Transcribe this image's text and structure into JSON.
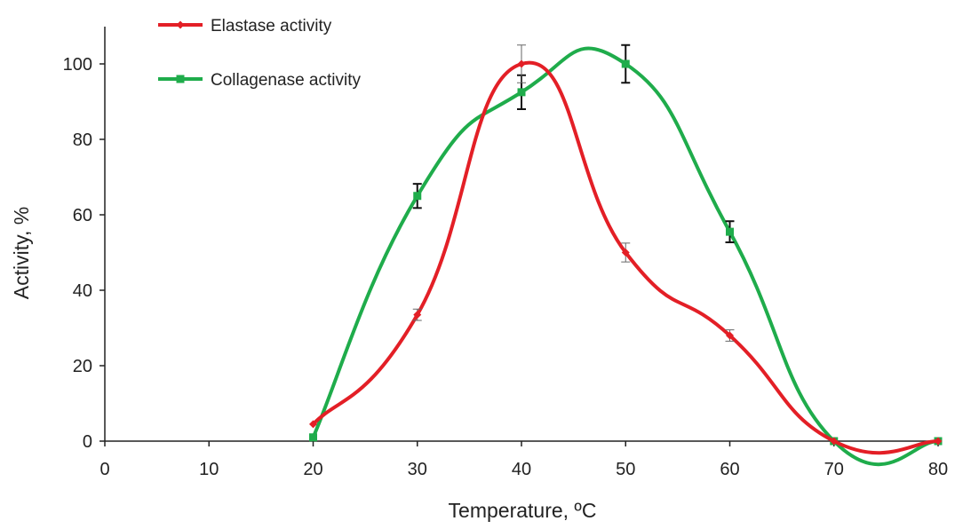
{
  "chart_data": {
    "type": "line",
    "xlabel": "Temperature, ºC",
    "ylabel": "Activity, %",
    "xlim": [
      0,
      80
    ],
    "ylim": [
      0,
      110
    ],
    "x_ticks": [
      "0",
      "10",
      "20",
      "30",
      "40",
      "50",
      "60",
      "70",
      "80"
    ],
    "y_ticks": [
      "0",
      "20",
      "40",
      "60",
      "80",
      "100"
    ],
    "grid": false,
    "legend_position": "top-left",
    "smoothed": true,
    "series": [
      {
        "name": "Elastase activity",
        "color": "#e31f26",
        "marker": "diamond",
        "x": [
          20,
          30,
          40,
          50,
          60,
          70,
          80
        ],
        "y": [
          4.5,
          33.5,
          100,
          50,
          28,
          0,
          0
        ],
        "error": [
          0,
          1.5,
          5,
          2.5,
          1.5,
          0,
          0
        ],
        "error_color": "#666666"
      },
      {
        "name": "Collagenase activity",
        "color": "#1fac4b",
        "marker": "square",
        "x": [
          20,
          30,
          40,
          50,
          60,
          70,
          80
        ],
        "y": [
          1,
          65,
          92.5,
          100,
          55.5,
          0,
          0
        ],
        "error": [
          0,
          3.2,
          4.5,
          5,
          2.8,
          0,
          0
        ],
        "error_color": "#111111"
      }
    ]
  }
}
